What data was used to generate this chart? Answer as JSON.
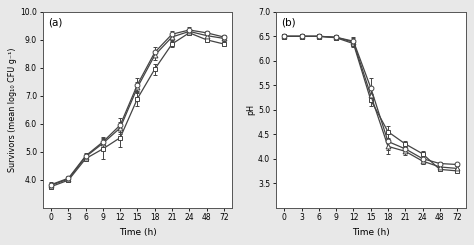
{
  "time_labels": [
    "0",
    "3",
    "6",
    "9",
    "12",
    "15",
    "18",
    "21",
    "24",
    "48",
    "72"
  ],
  "time_pos": [
    0,
    1,
    2,
    3,
    4,
    5,
    6,
    7,
    8,
    9,
    10
  ],
  "panel_a": {
    "title": "(a)",
    "ylabel": "Survivors (mean log₁₀ CFU g⁻¹)",
    "xlabel": "Time (h)",
    "ylim": [
      3.0,
      10.0
    ],
    "yticks": [
      4.0,
      5.0,
      6.0,
      7.0,
      8.0,
      9.0,
      10.0
    ],
    "ytick_labels": [
      "4.0",
      "5.0",
      "6.0",
      "7.0",
      "8.0",
      "9.0",
      "10.0"
    ],
    "series": {
      "circle": [
        3.82,
        4.05,
        4.85,
        5.35,
        5.95,
        7.4,
        8.55,
        9.2,
        9.35,
        9.25,
        9.1
      ],
      "triangle": [
        3.8,
        4.02,
        4.82,
        5.3,
        5.85,
        7.3,
        8.45,
        9.1,
        9.3,
        9.15,
        9.05
      ],
      "square": [
        3.75,
        3.98,
        4.75,
        5.1,
        5.5,
        6.9,
        7.95,
        8.85,
        9.25,
        9.0,
        8.85
      ]
    },
    "errors": {
      "circle": [
        0.08,
        0.08,
        0.1,
        0.18,
        0.25,
        0.22,
        0.18,
        0.1,
        0.1,
        0.08,
        0.08
      ],
      "triangle": [
        0.08,
        0.08,
        0.1,
        0.18,
        0.22,
        0.2,
        0.16,
        0.1,
        0.1,
        0.08,
        0.08
      ],
      "square": [
        0.08,
        0.08,
        0.1,
        0.35,
        0.35,
        0.25,
        0.2,
        0.1,
        0.08,
        0.08,
        0.08
      ]
    }
  },
  "panel_b": {
    "title": "(b)",
    "ylabel": "pH",
    "xlabel": "Time (h)",
    "ylim": [
      3.0,
      7.0
    ],
    "yticks": [
      3.5,
      4.0,
      4.5,
      5.0,
      5.5,
      6.0,
      6.5,
      7.0
    ],
    "ytick_labels": [
      "3.5",
      "4.0",
      "4.5",
      "5.0",
      "5.5",
      "6.0",
      "6.5",
      "7.0"
    ],
    "series": {
      "circle": [
        6.5,
        6.5,
        6.5,
        6.48,
        6.4,
        5.45,
        4.35,
        4.2,
        4.0,
        3.9,
        3.88
      ],
      "triangle": [
        6.5,
        6.5,
        6.5,
        6.48,
        6.38,
        5.3,
        4.25,
        4.15,
        3.95,
        3.83,
        3.8
      ],
      "square": [
        6.5,
        6.5,
        6.5,
        6.47,
        6.35,
        5.2,
        4.55,
        4.3,
        4.1,
        3.78,
        3.75
      ]
    },
    "errors": {
      "circle": [
        0.05,
        0.05,
        0.05,
        0.05,
        0.08,
        0.2,
        0.18,
        0.08,
        0.05,
        0.04,
        0.04
      ],
      "triangle": [
        0.05,
        0.05,
        0.05,
        0.05,
        0.08,
        0.15,
        0.15,
        0.08,
        0.05,
        0.04,
        0.04
      ],
      "square": [
        0.05,
        0.05,
        0.05,
        0.05,
        0.07,
        0.12,
        0.12,
        0.07,
        0.05,
        0.04,
        0.04
      ]
    }
  },
  "line_color": "#444444",
  "marker_size": 3.5,
  "line_width": 0.9,
  "capsize": 1.5,
  "elinewidth": 0.7,
  "background_color": "#e8e8e8",
  "plot_bg": "#ffffff"
}
